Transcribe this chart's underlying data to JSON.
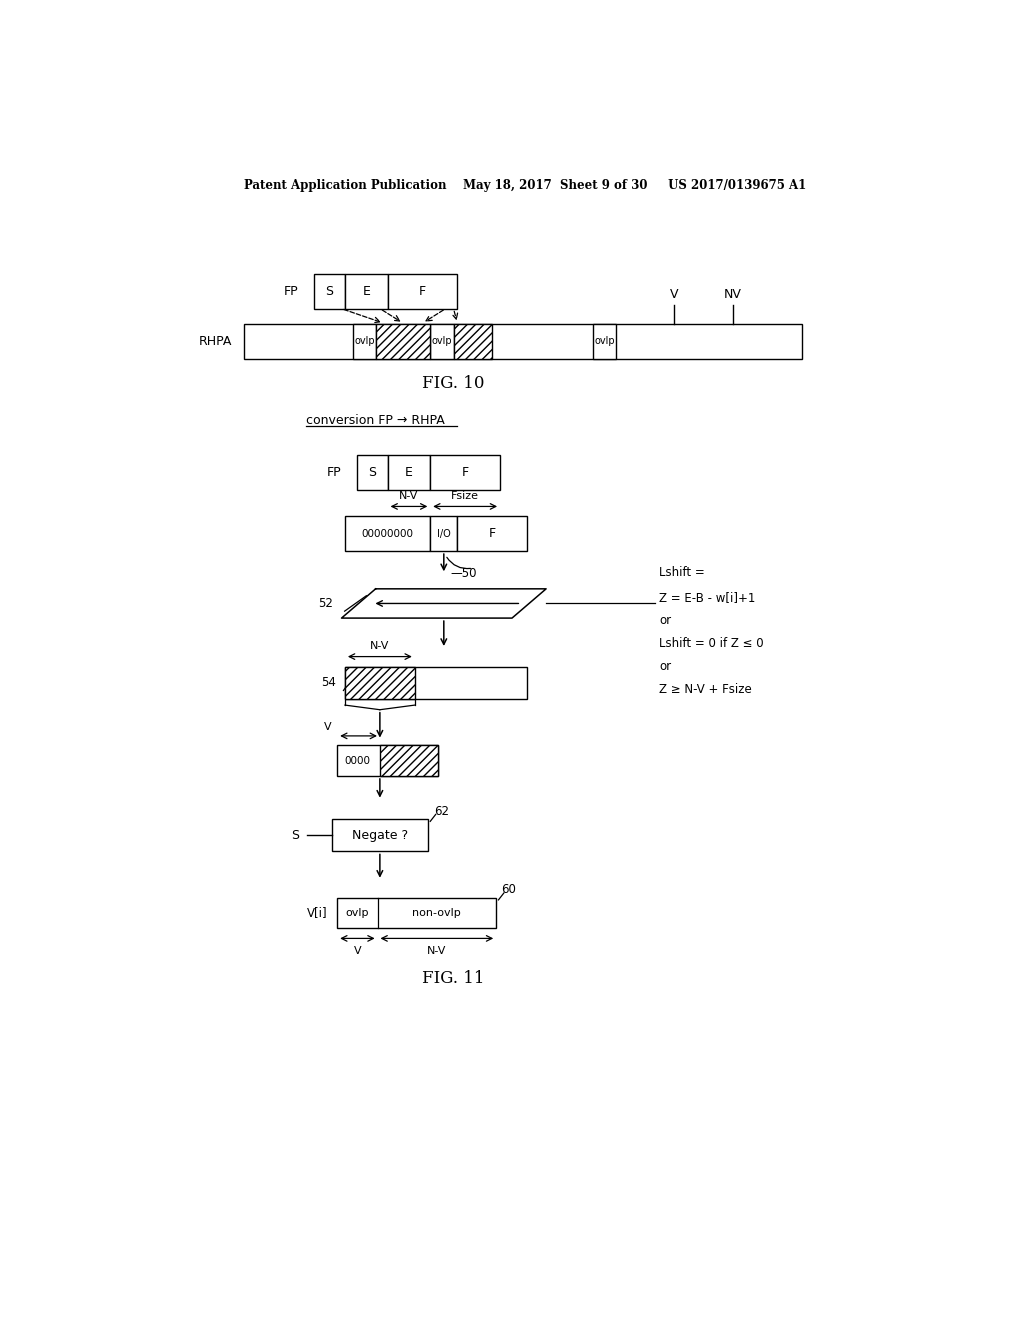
{
  "bg_color": "#ffffff",
  "header_text": "Patent Application Publication    May 18, 2017  Sheet 9 of 30     US 2017/0139675 A1",
  "fig10_label": "FIG. 10",
  "fig11_label": "FIG. 11",
  "conversion_label": "conversion FP → RHPA"
}
